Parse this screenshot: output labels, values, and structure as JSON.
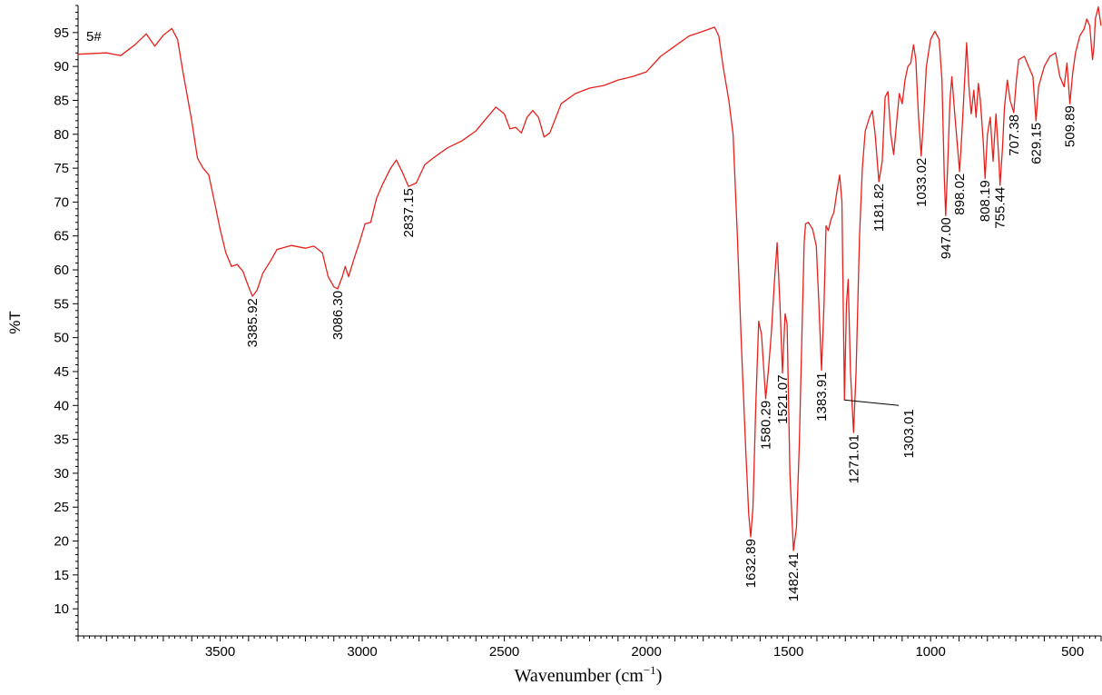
{
  "chart_data": {
    "type": "line",
    "sample_label": "5#",
    "ylabel": "%T",
    "xlabel": {
      "main": "Wavenumber (cm",
      "sup": "−1",
      "close": ")"
    },
    "xlim": [
      4000,
      400
    ],
    "ylim": [
      6,
      99
    ],
    "x_reversed": true,
    "grid": false,
    "line_color": "#e8201c",
    "x_ticks": [
      3500,
      3000,
      2500,
      2000,
      1500,
      1000,
      500
    ],
    "y_ticks": [
      10,
      15,
      20,
      25,
      30,
      35,
      40,
      45,
      50,
      55,
      60,
      65,
      70,
      75,
      80,
      85,
      90,
      95
    ],
    "series": [
      {
        "points": [
          [
            4000,
            91.8
          ],
          [
            3900,
            92.0
          ],
          [
            3850,
            91.6
          ],
          [
            3800,
            93.2
          ],
          [
            3760,
            94.8
          ],
          [
            3730,
            93.0
          ],
          [
            3700,
            94.6
          ],
          [
            3670,
            95.6
          ],
          [
            3650,
            94.0
          ],
          [
            3630,
            89.0
          ],
          [
            3600,
            82.0
          ],
          [
            3580,
            76.5
          ],
          [
            3560,
            75.0
          ],
          [
            3540,
            74.0
          ],
          [
            3520,
            70.0
          ],
          [
            3500,
            66.0
          ],
          [
            3480,
            62.5
          ],
          [
            3460,
            60.5
          ],
          [
            3440,
            60.8
          ],
          [
            3420,
            59.8
          ],
          [
            3400,
            57.5
          ],
          [
            3385.92,
            56.1
          ],
          [
            3370,
            57.0
          ],
          [
            3350,
            59.5
          ],
          [
            3320,
            61.5
          ],
          [
            3300,
            63.0
          ],
          [
            3250,
            63.6
          ],
          [
            3200,
            63.2
          ],
          [
            3170,
            63.5
          ],
          [
            3140,
            62.5
          ],
          [
            3120,
            59.0
          ],
          [
            3100,
            57.5
          ],
          [
            3086.3,
            57.2
          ],
          [
            3070,
            59.0
          ],
          [
            3060,
            60.5
          ],
          [
            3048,
            59.0
          ],
          [
            3030,
            61.5
          ],
          [
            3010,
            64.0
          ],
          [
            2990,
            66.8
          ],
          [
            2970,
            67.0
          ],
          [
            2950,
            70.5
          ],
          [
            2930,
            72.5
          ],
          [
            2900,
            75.0
          ],
          [
            2880,
            76.2
          ],
          [
            2860,
            74.5
          ],
          [
            2837.15,
            72.3
          ],
          [
            2810,
            72.8
          ],
          [
            2780,
            75.5
          ],
          [
            2750,
            76.5
          ],
          [
            2700,
            78.0
          ],
          [
            2650,
            79.0
          ],
          [
            2600,
            80.5
          ],
          [
            2560,
            82.5
          ],
          [
            2530,
            84.0
          ],
          [
            2500,
            83.0
          ],
          [
            2480,
            80.8
          ],
          [
            2460,
            81.0
          ],
          [
            2440,
            80.2
          ],
          [
            2420,
            82.5
          ],
          [
            2400,
            83.5
          ],
          [
            2380,
            82.5
          ],
          [
            2360,
            79.6
          ],
          [
            2340,
            80.2
          ],
          [
            2300,
            84.5
          ],
          [
            2250,
            86.0
          ],
          [
            2200,
            86.8
          ],
          [
            2150,
            87.2
          ],
          [
            2100,
            88.0
          ],
          [
            2050,
            88.5
          ],
          [
            2000,
            89.2
          ],
          [
            1950,
            91.5
          ],
          [
            1900,
            93.0
          ],
          [
            1850,
            94.5
          ],
          [
            1800,
            95.2
          ],
          [
            1760,
            95.8
          ],
          [
            1745,
            94.5
          ],
          [
            1730,
            90.0
          ],
          [
            1710,
            85.0
          ],
          [
            1695,
            80.0
          ],
          [
            1680,
            65.0
          ],
          [
            1665,
            48.0
          ],
          [
            1650,
            33.0
          ],
          [
            1640,
            24.0
          ],
          [
            1632.89,
            20.6
          ],
          [
            1625,
            25.0
          ],
          [
            1615,
            40.0
          ],
          [
            1605,
            52.4
          ],
          [
            1595,
            50.5
          ],
          [
            1580.29,
            41.0
          ],
          [
            1570,
            45.5
          ],
          [
            1560,
            51.0
          ],
          [
            1550,
            58.0
          ],
          [
            1540,
            64.0
          ],
          [
            1530,
            55.0
          ],
          [
            1521.07,
            44.8
          ],
          [
            1512,
            53.5
          ],
          [
            1505,
            52.0
          ],
          [
            1495,
            30.0
          ],
          [
            1482.41,
            18.6
          ],
          [
            1472,
            22.0
          ],
          [
            1462,
            34.0
          ],
          [
            1452,
            52.0
          ],
          [
            1445,
            64.0
          ],
          [
            1440,
            66.8
          ],
          [
            1430,
            67.0
          ],
          [
            1415,
            66.0
          ],
          [
            1402,
            63.5
          ],
          [
            1393,
            55.0
          ],
          [
            1383.91,
            45.2
          ],
          [
            1375,
            55.0
          ],
          [
            1368,
            66.5
          ],
          [
            1360,
            65.8
          ],
          [
            1350,
            67.5
          ],
          [
            1340,
            68.5
          ],
          [
            1330,
            71.5
          ],
          [
            1320,
            74.0
          ],
          [
            1312,
            70.0
          ],
          [
            1303.01,
            40.8
          ],
          [
            1296,
            55.0
          ],
          [
            1290,
            58.6
          ],
          [
            1282,
            45.0
          ],
          [
            1271.01,
            36.0
          ],
          [
            1262,
            45.0
          ],
          [
            1250,
            65.0
          ],
          [
            1240,
            75.0
          ],
          [
            1230,
            80.5
          ],
          [
            1215,
            82.5
          ],
          [
            1205,
            83.5
          ],
          [
            1195,
            80.0
          ],
          [
            1181.82,
            73.0
          ],
          [
            1170,
            76.0
          ],
          [
            1160,
            85.5
          ],
          [
            1150,
            86.3
          ],
          [
            1140,
            80.0
          ],
          [
            1130,
            77.0
          ],
          [
            1120,
            81.5
          ],
          [
            1110,
            86.0
          ],
          [
            1100,
            84.5
          ],
          [
            1090,
            88.0
          ],
          [
            1080,
            90.0
          ],
          [
            1070,
            90.5
          ],
          [
            1060,
            93.2
          ],
          [
            1052,
            91.0
          ],
          [
            1043,
            83.0
          ],
          [
            1033.02,
            76.8
          ],
          [
            1025,
            82.0
          ],
          [
            1015,
            90.0
          ],
          [
            1000,
            94.0
          ],
          [
            985,
            95.2
          ],
          [
            970,
            94.0
          ],
          [
            960,
            88.0
          ],
          [
            952,
            74.0
          ],
          [
            947.0,
            68.0
          ],
          [
            940,
            75.0
          ],
          [
            932,
            85.0
          ],
          [
            925,
            88.5
          ],
          [
            915,
            83.0
          ],
          [
            905,
            78.0
          ],
          [
            898.02,
            74.5
          ],
          [
            890,
            80.0
          ],
          [
            880,
            88.0
          ],
          [
            873,
            93.5
          ],
          [
            865,
            87.0
          ],
          [
            857,
            83.0
          ],
          [
            848,
            86.5
          ],
          [
            840,
            82.5
          ],
          [
            832,
            87.5
          ],
          [
            825,
            85.0
          ],
          [
            815,
            79.0
          ],
          [
            808.19,
            73.5
          ],
          [
            800,
            80.0
          ],
          [
            790,
            82.5
          ],
          [
            780,
            76.0
          ],
          [
            770,
            83.0
          ],
          [
            760,
            76.5
          ],
          [
            755.44,
            72.5
          ],
          [
            747,
            78.0
          ],
          [
            740,
            84.0
          ],
          [
            730,
            88.0
          ],
          [
            720,
            85.0
          ],
          [
            707.38,
            83.2
          ],
          [
            698,
            88.0
          ],
          [
            690,
            91.0
          ],
          [
            670,
            91.5
          ],
          [
            655,
            90.0
          ],
          [
            640,
            88.5
          ],
          [
            629.15,
            82.0
          ],
          [
            620,
            87.0
          ],
          [
            600,
            90.0
          ],
          [
            580,
            91.5
          ],
          [
            560,
            92.0
          ],
          [
            545,
            88.5
          ],
          [
            530,
            87.0
          ],
          [
            520,
            90.5
          ],
          [
            509.89,
            84.5
          ],
          [
            500,
            89.0
          ],
          [
            490,
            92.0
          ],
          [
            475,
            94.5
          ],
          [
            460,
            95.5
          ],
          [
            450,
            97.0
          ],
          [
            440,
            96.0
          ],
          [
            430,
            91.0
          ],
          [
            425,
            93.0
          ],
          [
            420,
            97.0
          ],
          [
            410,
            98.8
          ],
          [
            402,
            96.5
          ],
          [
            400,
            96.0
          ]
        ]
      }
    ],
    "peaks": [
      {
        "wn": 3385.92,
        "t": 56.1,
        "label": "3385.92"
      },
      {
        "wn": 3086.3,
        "t": 57.2,
        "label": "3086.30"
      },
      {
        "wn": 2837.15,
        "t": 72.3,
        "label": "2837.15"
      },
      {
        "wn": 1632.89,
        "t": 20.6,
        "label": "1632.89"
      },
      {
        "wn": 1580.29,
        "t": 41.0,
        "label": "1580.29"
      },
      {
        "wn": 1521.07,
        "t": 44.8,
        "label": "1521.07"
      },
      {
        "wn": 1482.41,
        "t": 18.6,
        "label": "1482.41"
      },
      {
        "wn": 1383.91,
        "t": 45.2,
        "label": "1383.91"
      },
      {
        "wn": 1303.01,
        "t": 40.8,
        "label": "1303.01"
      },
      {
        "wn": 1271.01,
        "t": 36.0,
        "label": "1271.01"
      },
      {
        "wn": 1181.82,
        "t": 73.0,
        "label": "1181.82"
      },
      {
        "wn": 1033.02,
        "t": 76.8,
        "label": "1033.02"
      },
      {
        "wn": 947.0,
        "t": 68.0,
        "label": "947.00"
      },
      {
        "wn": 898.02,
        "t": 74.5,
        "label": "898.02"
      },
      {
        "wn": 808.19,
        "t": 73.5,
        "label": "808.19"
      },
      {
        "wn": 755.44,
        "t": 72.5,
        "label": "755.44"
      },
      {
        "wn": 707.38,
        "t": 83.2,
        "label": "707.38"
      },
      {
        "wn": 629.15,
        "t": 82.0,
        "label": "629.15"
      },
      {
        "wn": 509.89,
        "t": 84.5,
        "label": "509.89"
      }
    ]
  }
}
